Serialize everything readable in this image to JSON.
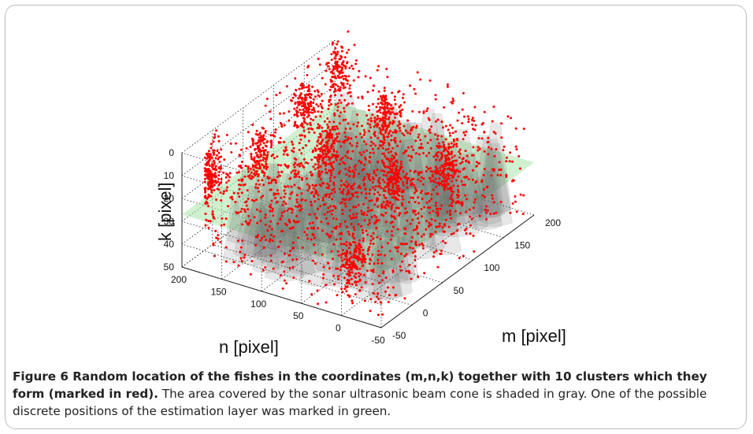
{
  "chart_data": {
    "type": "scatter",
    "projection": "3d",
    "axes": {
      "m": {
        "label": "m [pixel]",
        "range": [
          -50,
          200
        ],
        "ticks": [
          "-50",
          "0",
          "50",
          "100",
          "150",
          "200"
        ]
      },
      "n": {
        "label": "n [pixel]",
        "range": [
          -50,
          200
        ],
        "ticks": [
          "200",
          "150",
          "100",
          "50",
          "0",
          "-50"
        ]
      },
      "k": {
        "label": "k [pixel]",
        "range": [
          0,
          50
        ],
        "ticks": [
          "0",
          "10",
          "20",
          "30",
          "40",
          "50"
        ],
        "reversed": true
      }
    },
    "grid": true,
    "series": [
      {
        "role": "fishes",
        "color": "#ff0000",
        "count": 3000
      },
      {
        "role": "clusters",
        "count": 10
      },
      {
        "role": "sonar beam cone",
        "color": "#8a8a8a"
      },
      {
        "role": "estimation layer",
        "color": "#a8e6a8"
      }
    ],
    "clusters": [
      {
        "m": 185,
        "n": 185,
        "k": 10
      },
      {
        "m": -30,
        "n": 180,
        "k": 10
      },
      {
        "m": -15,
        "n": 200,
        "k": 20
      },
      {
        "m": 40,
        "n": 170,
        "k": 15
      },
      {
        "m": 110,
        "n": 170,
        "k": 8
      },
      {
        "m": 70,
        "n": 110,
        "k": 12
      },
      {
        "m": 140,
        "n": 90,
        "k": 10
      },
      {
        "m": 100,
        "n": 50,
        "k": 25
      },
      {
        "m": 150,
        "n": 20,
        "k": 25
      },
      {
        "m": 20,
        "n": 40,
        "k": 45
      }
    ]
  },
  "caption": {
    "bold": "Figure 6 Random location of the fishes in the coordinates (m,n,k) together with 10 clusters which they form (marked in red).",
    "rest": "The area covered by the sonar ultrasonic beam cone is shaded in gray. One of the possible discrete positions of the estimation layer was marked in green."
  }
}
